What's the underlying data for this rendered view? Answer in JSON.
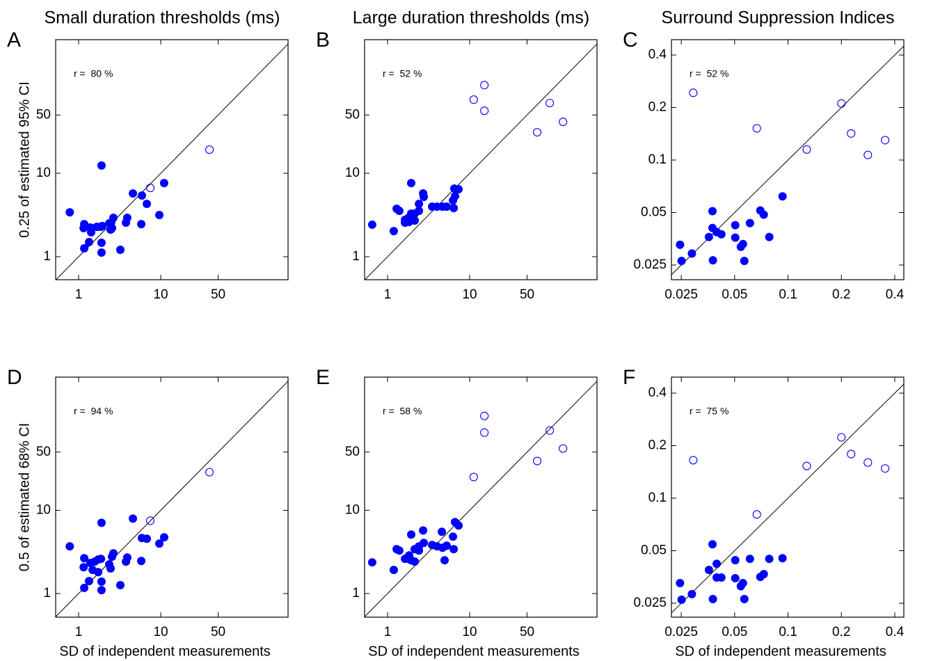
{
  "chart_data": [
    {
      "type": "scatter",
      "panel_label": "A",
      "title": "Small duration thresholds (ms)",
      "ylabel": "0.25 of estimated 95% CI",
      "annotation": "r =  80 %",
      "log_x": true,
      "log_y": true,
      "identity_line": true,
      "xlim": [
        0.525,
        355
      ],
      "ylim": [
        0.53,
        400
      ],
      "xticks": [
        1,
        10,
        50
      ],
      "yticks": [
        1,
        10,
        50
      ],
      "series": [
        {
          "marker": "filled",
          "color": "#0000ff",
          "x": [
            0.78,
            1.17,
            1.15,
            1.39,
            1.69,
            1.94,
            1.17,
            1.34,
            1.42,
            1.66,
            1.87,
            1.9,
            1.9,
            1.9,
            2.36,
            2.45,
            2.49,
            2.65,
            2.55,
            3.22,
            3.77,
            3.91,
            4.58,
            5.9,
            5.79,
            6.77,
            9.61,
            11.0
          ],
          "values": [
            3.41,
            2.46,
            2.2,
            2.24,
            2.28,
            2.33,
            1.26,
            1.5,
            1.96,
            2.28,
            2.28,
            1.12,
            1.47,
            12.4,
            2.51,
            2.11,
            2.56,
            2.93,
            2.2,
            1.21,
            2.56,
            2.93,
            5.73,
            5.41,
            2.46,
            4.3,
            3.16,
            7.64
          ]
        },
        {
          "marker": "open",
          "color": "#0000ff",
          "x": [
            7.46,
            39.2
          ],
          "values": [
            6.68,
            19.2
          ]
        }
      ]
    },
    {
      "type": "scatter",
      "panel_label": "B",
      "title": "Large duration thresholds (ms)",
      "annotation": "r =  52 %",
      "log_x": true,
      "log_y": true,
      "identity_line": true,
      "xlim": [
        0.525,
        355
      ],
      "ylim": [
        0.53,
        400
      ],
      "xticks": [
        1,
        10,
        50
      ],
      "yticks": [
        1,
        10,
        50
      ],
      "series": [
        {
          "marker": "filled",
          "color": "#0000ff",
          "x": [
            0.65,
            1.19,
            1.29,
            1.39,
            1.63,
            1.63,
            1.8,
            1.83,
            1.94,
            1.94,
            2.14,
            2.14,
            2.41,
            2.41,
            2.71,
            2.76,
            3.49,
            4.0,
            4.67,
            5.25,
            6.26,
            6.39,
            6.63,
            6.5,
            7.32
          ],
          "values": [
            2.42,
            2.03,
            3.76,
            3.55,
            2.77,
            2.56,
            2.93,
            2.61,
            7.64,
            3.29,
            2.71,
            3.29,
            3.55,
            4.3,
            5.73,
            5.21,
            3.98,
            3.98,
            3.98,
            3.98,
            4.73,
            3.83,
            5.31,
            6.56,
            6.43
          ]
        },
        {
          "marker": "open",
          "color": "#0000ff",
          "x": [
            11.2,
            15.1,
            15.1,
            66.4,
            94.4,
            137
          ],
          "values": [
            76.4,
            114,
            56.2,
            31.0,
            69.5,
            41.4
          ]
        }
      ]
    },
    {
      "type": "scatter",
      "panel_label": "C",
      "title": "Surround Suppression Indices",
      "annotation": "r =  52 %",
      "log_x": true,
      "log_y": true,
      "identity_line": true,
      "xlim": [
        0.022,
        0.45
      ],
      "ylim": [
        0.0206,
        0.49
      ],
      "xticks": [
        0.025,
        0.05,
        0.1,
        0.2,
        0.4
      ],
      "yticks": [
        0.025,
        0.05,
        0.1,
        0.2,
        0.4
      ],
      "series": [
        {
          "marker": "filled",
          "color": "#0000ff",
          "x": [
            0.0246,
            0.0251,
            0.0287,
            0.0358,
            0.0375,
            0.0377,
            0.0375,
            0.0396,
            0.0421,
            0.0504,
            0.0504,
            0.0542,
            0.0557,
            0.0567,
            0.061,
            0.0698,
            0.073,
            0.0784,
            0.0931
          ],
          "values": [
            0.0327,
            0.0264,
            0.0291,
            0.0362,
            0.0408,
            0.0266,
            0.0509,
            0.0386,
            0.0375,
            0.0423,
            0.0359,
            0.0318,
            0.033,
            0.0264,
            0.0435,
            0.0514,
            0.0486,
            0.0362,
            0.0619
          ]
        },
        {
          "marker": "open",
          "color": "#0000ff",
          "x": [
            0.0292,
            0.0667,
            0.1275,
            0.2,
            0.227,
            0.282,
            0.353
          ],
          "values": [
            0.243,
            0.152,
            0.115,
            0.211,
            0.142,
            0.107,
            0.13
          ]
        }
      ]
    },
    {
      "type": "scatter",
      "panel_label": "D",
      "xlabel": "SD of independent measurements",
      "ylabel": "0.5 of estimated 68% CI",
      "annotation": "r =  94 %",
      "log_x": true,
      "log_y": true,
      "identity_line": true,
      "xlim": [
        0.525,
        355
      ],
      "ylim": [
        0.52,
        398
      ],
      "xticks": [
        1,
        10,
        50
      ],
      "yticks": [
        1,
        10,
        50
      ],
      "series": [
        {
          "marker": "filled",
          "color": "#0000ff",
          "x": [
            0.78,
            1.17,
            1.15,
            1.39,
            1.48,
            1.57,
            1.17,
            1.34,
            1.73,
            1.73,
            1.87,
            1.9,
            1.9,
            1.9,
            2.36,
            2.45,
            2.55,
            2.65,
            3.22,
            3.77,
            3.91,
            4.58,
            5.9,
            5.79,
            6.77,
            9.61,
            11.0
          ],
          "values": [
            3.69,
            2.66,
            2.07,
            2.33,
            1.92,
            2.42,
            1.17,
            1.41,
            2.56,
            1.81,
            2.61,
            1.1,
            1.39,
            7.08,
            2.24,
            2.0,
            2.77,
            3.04,
            1.26,
            2.42,
            2.71,
            7.94,
            4.64,
            2.46,
            4.55,
            3.98,
            4.73
          ]
        },
        {
          "marker": "open",
          "color": "#0000ff",
          "x": [
            7.46,
            39.2
          ],
          "values": [
            7.5,
            28.7
          ]
        }
      ]
    },
    {
      "type": "scatter",
      "panel_label": "E",
      "xlabel": "SD of independent measurements",
      "annotation": "r =  58 %",
      "log_x": true,
      "log_y": true,
      "identity_line": true,
      "xlim": [
        0.525,
        355
      ],
      "ylim": [
        0.52,
        398
      ],
      "xticks": [
        1,
        10,
        50
      ],
      "yticks": [
        1,
        10,
        50
      ],
      "series": [
        {
          "marker": "filled",
          "color": "#0000ff",
          "x": [
            0.65,
            1.19,
            1.29,
            1.39,
            1.63,
            1.8,
            1.83,
            1.94,
            1.94,
            2.14,
            2.14,
            2.41,
            2.41,
            2.71,
            2.76,
            3.49,
            4.0,
            4.58,
            4.67,
            4.95,
            5.25,
            6.26,
            6.39,
            6.63,
            7.32
          ],
          "values": [
            2.37,
            1.92,
            3.41,
            3.28,
            2.61,
            2.61,
            2.87,
            5.11,
            2.51,
            3.41,
            2.42,
            3.28,
            3.69,
            5.73,
            4.06,
            3.83,
            3.69,
            5.52,
            3.55,
            2.51,
            3.76,
            4.82,
            3.41,
            7.22,
            6.56
          ]
        },
        {
          "marker": "open",
          "color": "#0000ff",
          "x": [
            11.2,
            15.1,
            15.1,
            66.4,
            94.4,
            137
          ],
          "values": [
            25.1,
            136,
            85.8,
            39.1,
            90.8,
            55.2
          ]
        }
      ]
    },
    {
      "type": "scatter",
      "panel_label": "F",
      "xlabel": "SD of independent measurements",
      "annotation": "r =  75 %",
      "log_x": true,
      "log_y": true,
      "identity_line": true,
      "xlim": [
        0.022,
        0.45
      ],
      "ylim": [
        0.0208,
        0.494
      ],
      "xticks": [
        0.025,
        0.05,
        0.1,
        0.2,
        0.4
      ],
      "yticks": [
        0.025,
        0.05,
        0.1,
        0.2,
        0.4
      ],
      "series": [
        {
          "marker": "filled",
          "color": "#0000ff",
          "x": [
            0.0246,
            0.0251,
            0.0287,
            0.0358,
            0.0375,
            0.0377,
            0.0396,
            0.0396,
            0.0421,
            0.0504,
            0.0504,
            0.0542,
            0.0557,
            0.0567,
            0.061,
            0.0698,
            0.073,
            0.0784,
            0.0931
          ],
          "values": [
            0.0326,
            0.0262,
            0.0282,
            0.0388,
            0.0544,
            0.0264,
            0.0421,
            0.0351,
            0.0351,
            0.0441,
            0.0348,
            0.0313,
            0.0326,
            0.0264,
            0.0449,
            0.0354,
            0.0367,
            0.0449,
            0.0453
          ]
        },
        {
          "marker": "open",
          "color": "#0000ff",
          "x": [
            0.0292,
            0.0667,
            0.1275,
            0.2,
            0.227,
            0.282,
            0.353
          ],
          "values": [
            0.165,
            0.0807,
            0.153,
            0.223,
            0.179,
            0.16,
            0.148
          ]
        }
      ]
    }
  ]
}
